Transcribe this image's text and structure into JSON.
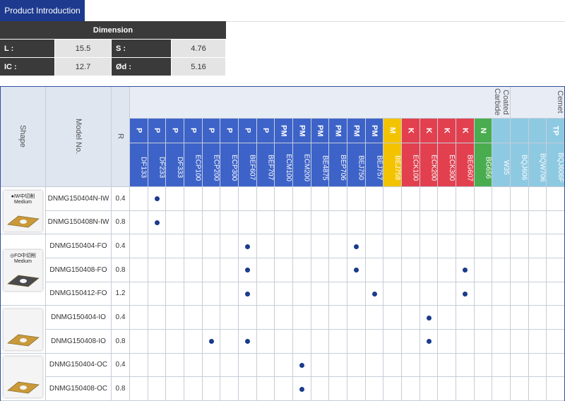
{
  "tab": "Product Introduction",
  "dimension": {
    "title": "Dimension",
    "rows": [
      [
        "L :",
        "15.5",
        "S :",
        "4.76"
      ],
      [
        "IC :",
        "12.7",
        "Ød :",
        "5.16"
      ]
    ]
  },
  "table": {
    "headers": {
      "shape": "Shape",
      "model": "Model No.",
      "r": "R"
    },
    "groups": [
      {
        "label": "Coated Carbide",
        "span": 21
      },
      {
        "label": "Cemet",
        "span": 3
      }
    ],
    "grades": [
      {
        "name": "DF133",
        "class": "P"
      },
      {
        "name": "DF233",
        "class": "P"
      },
      {
        "name": "DF333",
        "class": "P"
      },
      {
        "name": "ECP100",
        "class": "P"
      },
      {
        "name": "ECP200",
        "class": "P"
      },
      {
        "name": "ECP300",
        "class": "P"
      },
      {
        "name": "BEF607",
        "class": "P"
      },
      {
        "name": "BEF707",
        "class": "P"
      },
      {
        "name": "ECM100",
        "class": "PM"
      },
      {
        "name": "ECM200",
        "class": "PM"
      },
      {
        "name": "BE4875",
        "class": "PM"
      },
      {
        "name": "BEP706",
        "class": "PM"
      },
      {
        "name": "BEJ750",
        "class": "PM"
      },
      {
        "name": "BEJ757",
        "class": "PM"
      },
      {
        "name": "BEJ758",
        "class": "M"
      },
      {
        "name": "ECK100",
        "class": "K"
      },
      {
        "name": "ECK200",
        "class": "K"
      },
      {
        "name": "ECK300",
        "class": "K"
      },
      {
        "name": "BEG607",
        "class": "K"
      },
      {
        "name": "BG656",
        "class": "N"
      },
      {
        "name": "W35",
        "class": null
      },
      {
        "name": "BQJ606",
        "class": null
      },
      {
        "name": "BQW706",
        "class": null
      },
      {
        "name": "BQJ606F",
        "class": "TP"
      }
    ],
    "shapes": [
      {
        "label": "●IW中切削",
        "sub": "Medium",
        "rows": 2,
        "look": "gold"
      },
      {
        "label": "◎FO中切削",
        "sub": "Medium",
        "rows": 3,
        "look": "dark"
      },
      {
        "rows": 2,
        "look": "gold"
      },
      {
        "rows": 2,
        "look": "gold"
      }
    ],
    "rows": [
      {
        "model": "DNMG150404N-IW",
        "r": 0.4,
        "grades": [
          "DF233"
        ]
      },
      {
        "model": "DNMG150408N-IW",
        "r": 0.8,
        "grades": [
          "DF233"
        ]
      },
      {
        "model": "DNMG150404-FO",
        "r": 0.4,
        "grades": [
          "BEF607",
          "BEJ750"
        ]
      },
      {
        "model": "DNMG150408-FO",
        "r": 0.8,
        "grades": [
          "BEF607",
          "BEJ750",
          "BEG607"
        ]
      },
      {
        "model": "DNMG150412-FO",
        "r": 1.2,
        "grades": [
          "BEF607",
          "BEJ757",
          "BEG607"
        ]
      },
      {
        "model": "DNMG150404-IO",
        "r": 0.4,
        "grades": [
          "ECK200"
        ]
      },
      {
        "model": "DNMG150408-IO",
        "r": 0.8,
        "grades": [
          "ECP200",
          "BEF607",
          "ECK200"
        ]
      },
      {
        "model": "DNMG150404-OC",
        "r": 0.4,
        "grades": [
          "ECM200"
        ]
      },
      {
        "model": "DNMG150408-OC",
        "r": 0.8,
        "grades": [
          "ECM200"
        ]
      }
    ]
  }
}
